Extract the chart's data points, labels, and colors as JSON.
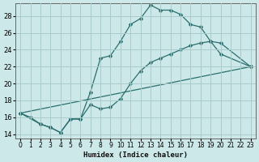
{
  "xlabel": "Humidex (Indice chaleur)",
  "background_color": "#cde8e8",
  "grid_color": "#a8cbcb",
  "line_color": "#2a6e6e",
  "xlim": [
    -0.5,
    23.5
  ],
  "ylim": [
    13.5,
    29.5
  ],
  "xticks": [
    0,
    1,
    2,
    3,
    4,
    5,
    6,
    7,
    8,
    9,
    10,
    11,
    12,
    13,
    14,
    15,
    16,
    17,
    18,
    19,
    20,
    21,
    22,
    23
  ],
  "yticks": [
    14,
    16,
    18,
    20,
    22,
    24,
    26,
    28
  ],
  "series1_x": [
    0,
    1,
    2,
    3,
    4,
    5,
    6,
    7,
    8,
    9,
    10,
    11,
    12,
    13,
    14,
    15,
    16,
    17,
    18,
    19,
    20,
    23
  ],
  "series1_y": [
    16.5,
    16.0,
    15.2,
    14.8,
    14.2,
    15.8,
    15.8,
    19.0,
    23.0,
    23.3,
    25.0,
    27.0,
    27.7,
    29.3,
    28.7,
    28.7,
    28.2,
    27.0,
    26.7,
    25.0,
    23.5,
    22.0
  ],
  "series2_x": [
    0,
    2,
    3,
    4,
    5,
    6,
    7,
    8,
    9,
    10,
    11,
    12,
    13,
    14,
    15,
    16,
    17,
    18,
    19,
    20,
    23
  ],
  "series2_y": [
    16.5,
    15.2,
    14.8,
    14.2,
    15.8,
    15.8,
    17.5,
    17.0,
    17.2,
    18.2,
    20.0,
    21.5,
    22.5,
    23.0,
    23.5,
    24.0,
    24.5,
    24.8,
    25.0,
    24.8,
    22.0
  ],
  "series3_x": [
    0,
    23
  ],
  "series3_y": [
    16.5,
    22.0
  ]
}
